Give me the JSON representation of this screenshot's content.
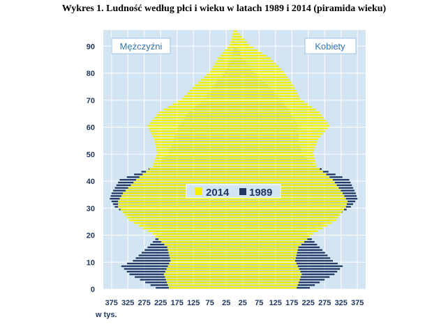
{
  "title": "Wykres 1. Ludność według płci i wieku w latach 1989 i 2014 (piramida wieku)",
  "colors": {
    "plot_bg": "#d3e4f2",
    "grid": "#ffffff",
    "series_2014": "#f2f200",
    "series_1989": "#1f3864",
    "label_text": "#2e75b6",
    "axis_text": "#1f3864"
  },
  "chart_data": {
    "type": "bar",
    "orientation": "horizontal",
    "pyramid": true,
    "unit_label": "w tys.",
    "left_label": "Mężczyźni",
    "right_label": "Kobiety",
    "x_ticks": [
      "375",
      "325",
      "275",
      "225",
      "175",
      "125",
      "75",
      "25",
      "25",
      "75",
      "125",
      "175",
      "225",
      "275",
      "325",
      "375"
    ],
    "y_ticks": [
      "0",
      "10",
      "20",
      "30",
      "40",
      "50",
      "60",
      "70",
      "80",
      "90"
    ],
    "xlim": [
      -400,
      400
    ],
    "ylim": [
      0,
      96
    ],
    "grid": true,
    "legend_position": "center",
    "series": [
      {
        "name": "2014",
        "color": "#f2f200",
        "ages": [
          0,
          5,
          10,
          15,
          20,
          25,
          30,
          32,
          35,
          40,
          45,
          50,
          55,
          60,
          65,
          70,
          75,
          80,
          85,
          90,
          95
        ],
        "men": [
          200,
          215,
          195,
          205,
          250,
          320,
          355,
          355,
          340,
          300,
          250,
          235,
          245,
          265,
          230,
          160,
          120,
          75,
          50,
          15,
          3
        ],
        "women": [
          190,
          205,
          185,
          195,
          240,
          310,
          340,
          345,
          330,
          300,
          250,
          240,
          255,
          290,
          260,
          200,
          180,
          150,
          110,
          45,
          8
        ]
      },
      {
        "name": "1989",
        "color": "#1f3864",
        "ages": [
          0,
          5,
          8,
          10,
          15,
          20,
          25,
          30,
          33,
          35,
          40,
          45,
          50,
          55,
          60,
          65,
          70,
          75,
          80,
          85,
          90
        ],
        "men": [
          240,
          320,
          345,
          310,
          265,
          225,
          300,
          365,
          380,
          375,
          350,
          240,
          200,
          185,
          170,
          140,
          90,
          60,
          30,
          10,
          3
        ],
        "women": [
          230,
          305,
          330,
          300,
          260,
          220,
          290,
          355,
          375,
          370,
          350,
          245,
          205,
          195,
          195,
          170,
          140,
          100,
          60,
          25,
          5
        ]
      }
    ]
  }
}
